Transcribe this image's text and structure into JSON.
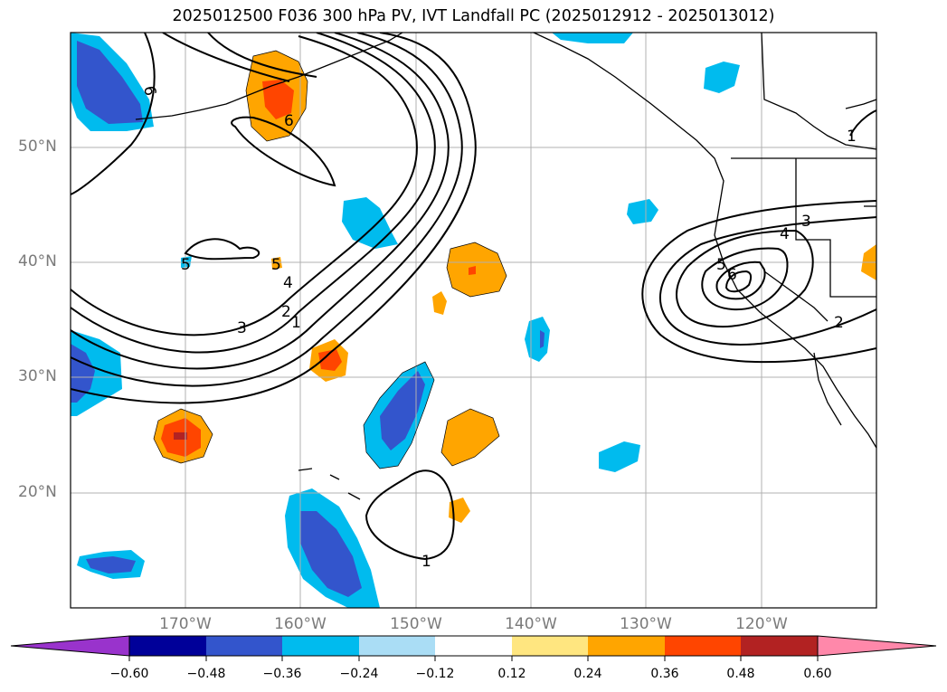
{
  "title": "2025012500 F036 300 hPa PV, IVT Landfall PC (2025012912 - 2025013012)",
  "lat_labels": [
    "50°N",
    "40°N",
    "30°N",
    "20°N"
  ],
  "lon_labels": [
    "170°W",
    "160°W",
    "150°W",
    "140°W",
    "130°W",
    "120°W"
  ],
  "contour_labels": [
    "6",
    "6",
    "5",
    "5",
    "4",
    "3",
    "2",
    "1",
    "1",
    "1",
    "3",
    "4",
    "5",
    "6",
    "2"
  ],
  "colorbar": {
    "ticks": [
      "−0.60",
      "−0.48",
      "−0.36",
      "−0.24",
      "−0.12",
      "0.12",
      "0.24",
      "0.36",
      "0.48",
      "0.60"
    ],
    "colors": [
      "#9933cc",
      "#000099",
      "#3355cc",
      "#00bbee",
      "#aaddf5",
      "#ffffff",
      "#ffe680",
      "#ffa500",
      "#ff4500",
      "#b22222",
      "#ff88aa"
    ]
  },
  "map_extent": {
    "lon_min": -180,
    "lon_max": -110,
    "lat_min": 10,
    "lat_max": 60
  }
}
